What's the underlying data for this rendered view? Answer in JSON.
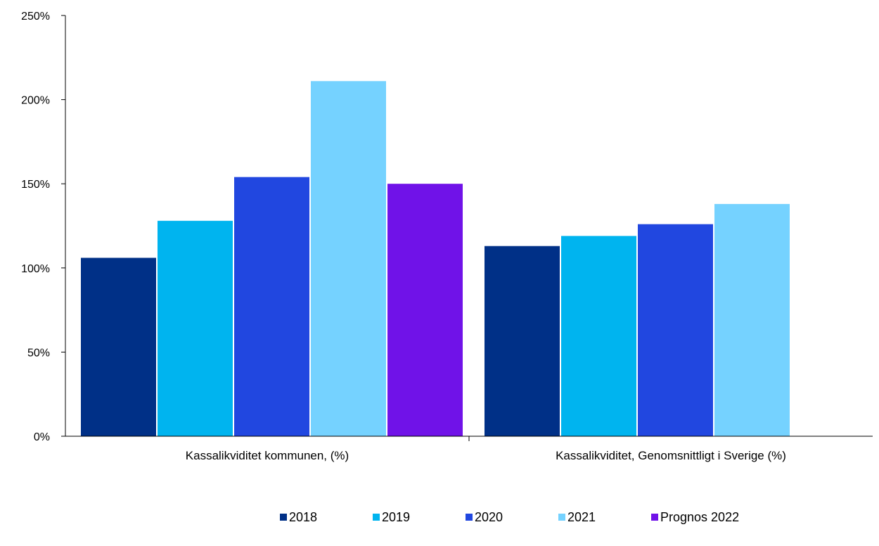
{
  "chart_data": {
    "type": "bar",
    "categories": [
      "Kassalikviditet kommunen, (%)",
      "Kassalikviditet, Genomsnittligt i Sverige (%)"
    ],
    "series": [
      {
        "name": "2018",
        "color": "#003087",
        "values": [
          106,
          113
        ]
      },
      {
        "name": "2019",
        "color": "#00b4ef",
        "values": [
          128,
          119
        ]
      },
      {
        "name": "2020",
        "color": "#2147e0",
        "values": [
          154,
          126
        ]
      },
      {
        "name": "2021",
        "color": "#75d2ff",
        "values": [
          211,
          138
        ]
      },
      {
        "name": "Prognos 2022",
        "color": "#7012e8",
        "values": [
          150,
          null
        ]
      }
    ],
    "yticks": [
      "0%",
      "50%",
      "100%",
      "150%",
      "200%",
      "250%"
    ],
    "ylim": [
      0,
      250
    ],
    "ytick_step": 50,
    "legend_position": "bottom",
    "grid": false
  }
}
